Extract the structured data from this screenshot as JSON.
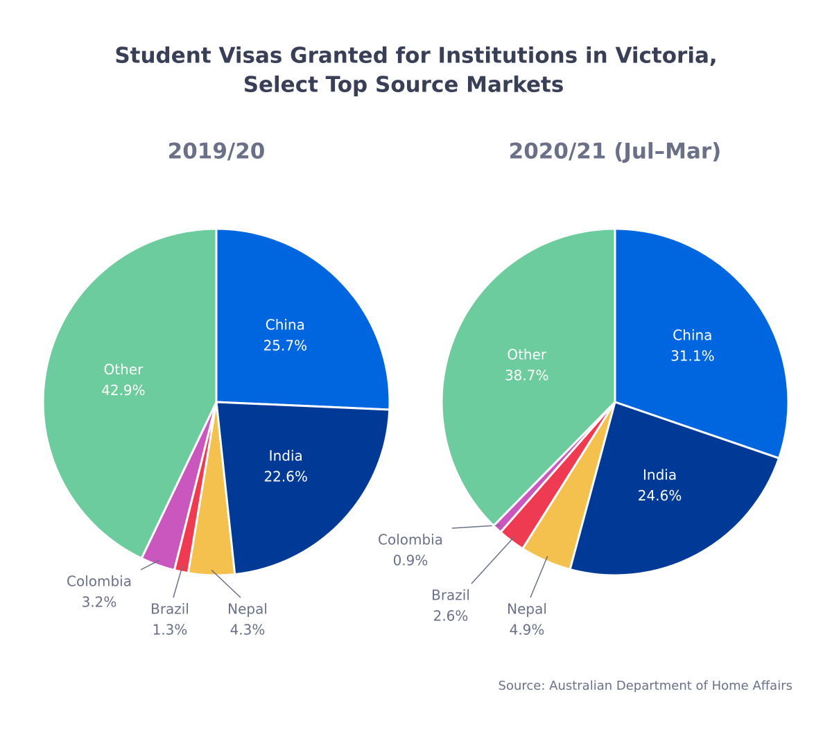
{
  "title": [
    "Student Visas Granted for Institutions in Victoria,",
    "Select Top Source Markets"
  ],
  "source": "Source: Australian Department of Home Affairs",
  "chart_data": [
    {
      "type": "pie",
      "title": "2019/20",
      "categories": [
        "China",
        "India",
        "Nepal",
        "Brazil",
        "Colombia",
        "Other"
      ],
      "values": [
        25.7,
        22.6,
        4.3,
        1.3,
        3.2,
        42.9
      ],
      "value_labels": [
        "25.7%",
        "22.6%",
        "4.3%",
        "1.3%",
        "3.2%",
        "42.9%"
      ],
      "colors": [
        "#0066e0",
        "#003a96",
        "#f4c04e",
        "#ef3b52",
        "#c957be",
        "#6ccc9e"
      ]
    },
    {
      "type": "pie",
      "title": "2020/21 (Jul–Mar)",
      "categories": [
        "China",
        "India",
        "Nepal",
        "Brazil",
        "Colombia",
        "Other"
      ],
      "values": [
        31.1,
        24.6,
        4.9,
        2.6,
        0.9,
        38.7
      ],
      "value_labels": [
        "31.1%",
        "24.6%",
        "4.9%",
        "2.6%",
        "0.9%",
        "38.7%"
      ],
      "colors": [
        "#0066e0",
        "#003a96",
        "#f4c04e",
        "#ef3b52",
        "#c957be",
        "#6ccc9e"
      ]
    }
  ]
}
